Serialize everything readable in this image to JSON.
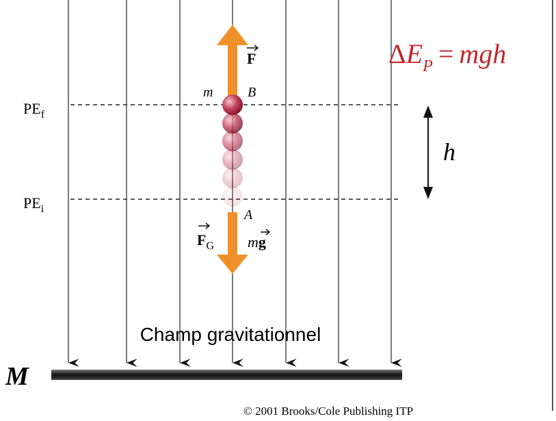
{
  "equation": {
    "delta": "Δ",
    "e": "E",
    "sub": "P",
    "equals": "=",
    "rhs": "mgh"
  },
  "force_up": "F",
  "mass_top": "m",
  "point_b": "B",
  "pe_final": {
    "base": "PE",
    "sub": "f"
  },
  "pe_initial": {
    "base": "PE",
    "sub": "i"
  },
  "height": "h",
  "point_a": "A",
  "force_gravity": {
    "base": "F",
    "sub": "G"
  },
  "weight": {
    "m": "m",
    "g": "g"
  },
  "field_label": "Champ gravitationnel",
  "mass_label": "M",
  "copyright": "© 2001 Brooks/Cole Publishing ITP"
}
